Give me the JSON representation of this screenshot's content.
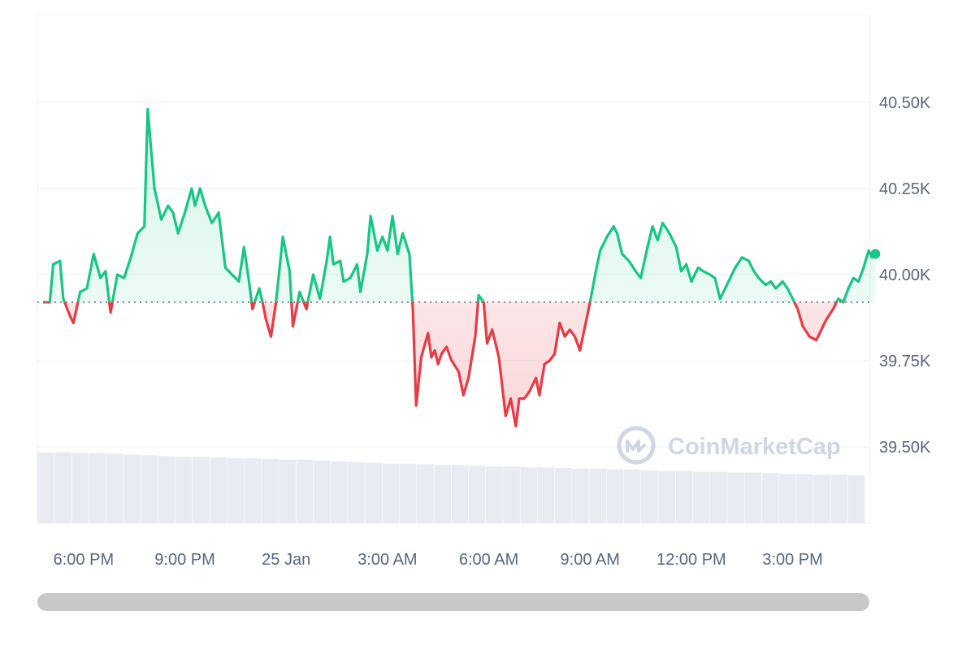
{
  "chart_data": {
    "type": "line",
    "baseline": 39920,
    "ylim": [
      39300,
      40800
    ],
    "y_ticks": [
      {
        "value": 40500,
        "label": "40.50K"
      },
      {
        "value": 40250,
        "label": "40.25K"
      },
      {
        "value": 40000,
        "label": "40.00K"
      },
      {
        "value": 39750,
        "label": "39.75K"
      },
      {
        "value": 39500,
        "label": "39.50K"
      }
    ],
    "x_ticks": [
      {
        "hour": 1.2,
        "label": "6:00 PM"
      },
      {
        "hour": 4.2,
        "label": "9:00 PM"
      },
      {
        "hour": 7.2,
        "label": "25 Jan"
      },
      {
        "hour": 10.2,
        "label": "3:00 AM"
      },
      {
        "hour": 13.2,
        "label": "6:00 AM"
      },
      {
        "hour": 16.2,
        "label": "9:00 AM"
      },
      {
        "hour": 19.2,
        "label": "12:00 PM"
      },
      {
        "hour": 22.2,
        "label": "3:00 PM"
      }
    ],
    "xlim": [
      0,
      24.2
    ],
    "series": [
      {
        "points": [
          [
            0.0,
            39920
          ],
          [
            0.2,
            39920
          ],
          [
            0.3,
            40030
          ],
          [
            0.5,
            40040
          ],
          [
            0.6,
            39930
          ],
          [
            0.8,
            39880
          ],
          [
            0.9,
            39860
          ],
          [
            1.1,
            39950
          ],
          [
            1.3,
            39960
          ],
          [
            1.5,
            40060
          ],
          [
            1.7,
            39990
          ],
          [
            1.85,
            40010
          ],
          [
            2.0,
            39890
          ],
          [
            2.2,
            40000
          ],
          [
            2.4,
            39990
          ],
          [
            2.6,
            40050
          ],
          [
            2.8,
            40120
          ],
          [
            3.0,
            40140
          ],
          [
            3.1,
            40480
          ],
          [
            3.3,
            40250
          ],
          [
            3.5,
            40160
          ],
          [
            3.7,
            40200
          ],
          [
            3.85,
            40180
          ],
          [
            4.0,
            40120
          ],
          [
            4.2,
            40180
          ],
          [
            4.4,
            40250
          ],
          [
            4.5,
            40200
          ],
          [
            4.65,
            40250
          ],
          [
            4.8,
            40200
          ],
          [
            5.0,
            40150
          ],
          [
            5.2,
            40180
          ],
          [
            5.4,
            40020
          ],
          [
            5.6,
            40000
          ],
          [
            5.8,
            39980
          ],
          [
            5.95,
            40080
          ],
          [
            6.1,
            39980
          ],
          [
            6.2,
            39900
          ],
          [
            6.4,
            39960
          ],
          [
            6.5,
            39920
          ],
          [
            6.6,
            39870
          ],
          [
            6.75,
            39820
          ],
          [
            6.9,
            39920
          ],
          [
            7.1,
            40110
          ],
          [
            7.3,
            40010
          ],
          [
            7.4,
            39850
          ],
          [
            7.5,
            39900
          ],
          [
            7.6,
            39950
          ],
          [
            7.8,
            39900
          ],
          [
            8.0,
            40000
          ],
          [
            8.2,
            39930
          ],
          [
            8.4,
            40040
          ],
          [
            8.5,
            40110
          ],
          [
            8.6,
            40030
          ],
          [
            8.8,
            40040
          ],
          [
            8.9,
            39980
          ],
          [
            9.1,
            39990
          ],
          [
            9.3,
            40030
          ],
          [
            9.4,
            39950
          ],
          [
            9.6,
            40060
          ],
          [
            9.7,
            40170
          ],
          [
            9.9,
            40070
          ],
          [
            10.05,
            40110
          ],
          [
            10.2,
            40070
          ],
          [
            10.35,
            40170
          ],
          [
            10.5,
            40060
          ],
          [
            10.65,
            40120
          ],
          [
            10.85,
            40060
          ],
          [
            10.95,
            39900
          ],
          [
            11.05,
            39620
          ],
          [
            11.2,
            39760
          ],
          [
            11.4,
            39830
          ],
          [
            11.5,
            39760
          ],
          [
            11.6,
            39780
          ],
          [
            11.7,
            39740
          ],
          [
            11.8,
            39770
          ],
          [
            11.95,
            39790
          ],
          [
            12.1,
            39750
          ],
          [
            12.3,
            39720
          ],
          [
            12.45,
            39650
          ],
          [
            12.6,
            39700
          ],
          [
            12.8,
            39820
          ],
          [
            12.9,
            39940
          ],
          [
            13.05,
            39920
          ],
          [
            13.15,
            39800
          ],
          [
            13.3,
            39840
          ],
          [
            13.5,
            39760
          ],
          [
            13.7,
            39590
          ],
          [
            13.85,
            39640
          ],
          [
            14.0,
            39560
          ],
          [
            14.1,
            39640
          ],
          [
            14.25,
            39640
          ],
          [
            14.4,
            39660
          ],
          [
            14.6,
            39700
          ],
          [
            14.7,
            39650
          ],
          [
            14.85,
            39740
          ],
          [
            15.0,
            39750
          ],
          [
            15.15,
            39770
          ],
          [
            15.3,
            39860
          ],
          [
            15.45,
            39820
          ],
          [
            15.6,
            39840
          ],
          [
            15.75,
            39820
          ],
          [
            15.9,
            39780
          ],
          [
            16.05,
            39850
          ],
          [
            16.2,
            39920
          ],
          [
            16.35,
            40000
          ],
          [
            16.5,
            40070
          ],
          [
            16.7,
            40110
          ],
          [
            16.9,
            40140
          ],
          [
            17.0,
            40120
          ],
          [
            17.15,
            40060
          ],
          [
            17.35,
            40040
          ],
          [
            17.55,
            40010
          ],
          [
            17.7,
            39990
          ],
          [
            17.9,
            40080
          ],
          [
            18.05,
            40140
          ],
          [
            18.2,
            40100
          ],
          [
            18.35,
            40150
          ],
          [
            18.55,
            40120
          ],
          [
            18.75,
            40080
          ],
          [
            18.9,
            40010
          ],
          [
            19.05,
            40030
          ],
          [
            19.2,
            39980
          ],
          [
            19.4,
            40020
          ],
          [
            19.55,
            40010
          ],
          [
            19.75,
            40000
          ],
          [
            19.9,
            39990
          ],
          [
            20.05,
            39930
          ],
          [
            20.2,
            39960
          ],
          [
            20.35,
            39990
          ],
          [
            20.5,
            40020
          ],
          [
            20.7,
            40050
          ],
          [
            20.9,
            40040
          ],
          [
            21.05,
            40010
          ],
          [
            21.2,
            39990
          ],
          [
            21.4,
            39970
          ],
          [
            21.55,
            39980
          ],
          [
            21.7,
            39960
          ],
          [
            21.9,
            39980
          ],
          [
            22.05,
            39960
          ],
          [
            22.2,
            39930
          ],
          [
            22.35,
            39900
          ],
          [
            22.5,
            39850
          ],
          [
            22.7,
            39820
          ],
          [
            22.9,
            39810
          ],
          [
            23.05,
            39840
          ],
          [
            23.2,
            39870
          ],
          [
            23.4,
            39900
          ],
          [
            23.55,
            39930
          ],
          [
            23.7,
            39920
          ],
          [
            23.85,
            39960
          ],
          [
            24.0,
            39990
          ],
          [
            24.15,
            39980
          ],
          [
            24.3,
            40020
          ],
          [
            24.45,
            40070
          ],
          [
            24.55,
            40050
          ],
          [
            24.65,
            40060
          ]
        ]
      }
    ],
    "volume_note": "volume bars decrease slowly across the day",
    "volume": [
      0.95,
      0.95,
      0.94,
      0.94,
      0.93,
      0.92,
      0.91,
      0.9,
      0.89,
      0.89,
      0.88,
      0.87,
      0.87,
      0.86,
      0.85,
      0.85,
      0.84,
      0.83,
      0.82,
      0.81,
      0.8,
      0.8,
      0.79,
      0.78,
      0.78,
      0.77,
      0.76,
      0.76,
      0.75,
      0.75,
      0.74,
      0.73,
      0.73,
      0.72,
      0.72,
      0.71,
      0.7,
      0.7,
      0.69,
      0.69,
      0.68,
      0.68,
      0.67,
      0.66,
      0.66,
      0.65,
      0.65,
      0.64
    ],
    "grid": true,
    "colors": {
      "up": "#16c784",
      "down": "#ea3943",
      "baseline": "#58667e",
      "grid": "#eff2f5",
      "volume": "#e8ecf2",
      "scrollbar": "#c8c8c8"
    }
  },
  "watermark": {
    "text": "CoinMarketCap"
  }
}
